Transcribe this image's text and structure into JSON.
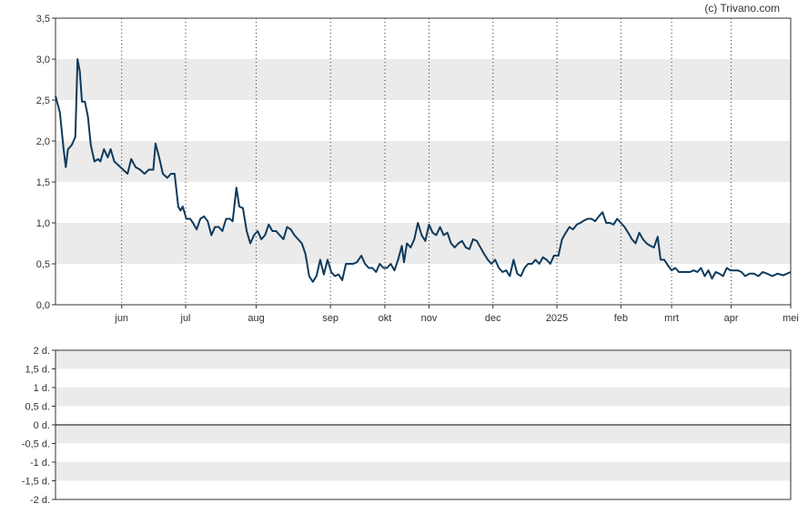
{
  "credit": "(c) Trivano.com",
  "chart_data": [
    {
      "type": "line",
      "title": "",
      "xlabel": "",
      "ylabel": "",
      "ylim": [
        0,
        3.5
      ],
      "y_ticks": [
        "0,0",
        "0,5",
        "1,0",
        "1,5",
        "2,0",
        "2,5",
        "3,0",
        "3,5"
      ],
      "x_ticks": [
        "jun",
        "jul",
        "aug",
        "sep",
        "okt",
        "nov",
        "dec",
        "2025",
        "feb",
        "mrt",
        "apr",
        "mei"
      ],
      "grid": "alternating horizontal bands, dotted vertical lines",
      "colors": {
        "line": "#0d3a5c",
        "band": "#ebebeb"
      },
      "series": [
        {
          "x_unit": "approximate fraction of the x-axis span, from the first data point (0) to the last (1)",
          "points": [
            [
              0.0,
              2.55
            ],
            [
              0.006,
              2.35
            ],
            [
              0.011,
              1.9
            ],
            [
              0.014,
              1.68
            ],
            [
              0.017,
              1.9
            ],
            [
              0.022,
              1.95
            ],
            [
              0.027,
              2.05
            ],
            [
              0.03,
              3.0
            ],
            [
              0.033,
              2.85
            ],
            [
              0.036,
              2.48
            ],
            [
              0.04,
              2.48
            ],
            [
              0.044,
              2.3
            ],
            [
              0.048,
              1.95
            ],
            [
              0.053,
              1.75
            ],
            [
              0.058,
              1.78
            ],
            [
              0.061,
              1.75
            ],
            [
              0.066,
              1.9
            ],
            [
              0.071,
              1.8
            ],
            [
              0.075,
              1.9
            ],
            [
              0.08,
              1.75
            ],
            [
              0.086,
              1.7
            ],
            [
              0.092,
              1.65
            ],
            [
              0.098,
              1.6
            ],
            [
              0.103,
              1.78
            ],
            [
              0.109,
              1.68
            ],
            [
              0.115,
              1.65
            ],
            [
              0.121,
              1.6
            ],
            [
              0.127,
              1.65
            ],
            [
              0.133,
              1.65
            ],
            [
              0.136,
              1.97
            ],
            [
              0.141,
              1.8
            ],
            [
              0.146,
              1.6
            ],
            [
              0.152,
              1.55
            ],
            [
              0.157,
              1.6
            ],
            [
              0.162,
              1.6
            ],
            [
              0.167,
              1.2
            ],
            [
              0.17,
              1.15
            ],
            [
              0.173,
              1.2
            ],
            [
              0.178,
              1.05
            ],
            [
              0.183,
              1.05
            ],
            [
              0.187,
              1.0
            ],
            [
              0.192,
              0.92
            ],
            [
              0.197,
              1.05
            ],
            [
              0.202,
              1.08
            ],
            [
              0.207,
              1.02
            ],
            [
              0.212,
              0.85
            ],
            [
              0.217,
              0.95
            ],
            [
              0.222,
              0.95
            ],
            [
              0.227,
              0.9
            ],
            [
              0.232,
              1.05
            ],
            [
              0.237,
              1.05
            ],
            [
              0.241,
              1.02
            ],
            [
              0.246,
              1.43
            ],
            [
              0.25,
              1.2
            ],
            [
              0.255,
              1.18
            ],
            [
              0.26,
              0.9
            ],
            [
              0.265,
              0.75
            ],
            [
              0.27,
              0.85
            ],
            [
              0.275,
              0.9
            ],
            [
              0.28,
              0.8
            ],
            [
              0.285,
              0.85
            ],
            [
              0.29,
              0.98
            ],
            [
              0.295,
              0.9
            ],
            [
              0.3,
              0.9
            ],
            [
              0.305,
              0.85
            ],
            [
              0.31,
              0.8
            ],
            [
              0.315,
              0.95
            ],
            [
              0.32,
              0.92
            ],
            [
              0.325,
              0.85
            ],
            [
              0.33,
              0.8
            ],
            [
              0.335,
              0.75
            ],
            [
              0.34,
              0.62
            ],
            [
              0.345,
              0.35
            ],
            [
              0.35,
              0.28
            ],
            [
              0.355,
              0.35
            ],
            [
              0.36,
              0.55
            ],
            [
              0.365,
              0.37
            ],
            [
              0.37,
              0.55
            ],
            [
              0.375,
              0.4
            ],
            [
              0.38,
              0.35
            ],
            [
              0.385,
              0.37
            ],
            [
              0.39,
              0.3
            ],
            [
              0.395,
              0.5
            ],
            [
              0.4,
              0.5
            ],
            [
              0.405,
              0.5
            ],
            [
              0.41,
              0.52
            ],
            [
              0.416,
              0.6
            ],
            [
              0.421,
              0.5
            ],
            [
              0.426,
              0.45
            ],
            [
              0.431,
              0.45
            ],
            [
              0.436,
              0.4
            ],
            [
              0.441,
              0.5
            ],
            [
              0.446,
              0.45
            ],
            [
              0.451,
              0.45
            ],
            [
              0.456,
              0.5
            ],
            [
              0.461,
              0.42
            ],
            [
              0.466,
              0.55
            ],
            [
              0.471,
              0.72
            ],
            [
              0.474,
              0.52
            ],
            [
              0.478,
              0.75
            ],
            [
              0.483,
              0.7
            ],
            [
              0.488,
              0.8
            ],
            [
              0.493,
              1.0
            ],
            [
              0.498,
              0.85
            ],
            [
              0.503,
              0.78
            ],
            [
              0.508,
              0.98
            ],
            [
              0.513,
              0.88
            ],
            [
              0.518,
              0.85
            ],
            [
              0.523,
              0.95
            ],
            [
              0.528,
              0.85
            ],
            [
              0.533,
              0.88
            ],
            [
              0.538,
              0.75
            ],
            [
              0.543,
              0.7
            ],
            [
              0.548,
              0.75
            ],
            [
              0.553,
              0.78
            ],
            [
              0.558,
              0.7
            ],
            [
              0.563,
              0.68
            ],
            [
              0.568,
              0.8
            ],
            [
              0.573,
              0.78
            ],
            [
              0.578,
              0.7
            ],
            [
              0.583,
              0.62
            ],
            [
              0.588,
              0.55
            ],
            [
              0.593,
              0.5
            ],
            [
              0.598,
              0.55
            ],
            [
              0.603,
              0.45
            ],
            [
              0.608,
              0.4
            ],
            [
              0.613,
              0.42
            ],
            [
              0.618,
              0.35
            ],
            [
              0.623,
              0.55
            ],
            [
              0.628,
              0.38
            ],
            [
              0.633,
              0.35
            ],
            [
              0.638,
              0.45
            ],
            [
              0.643,
              0.5
            ],
            [
              0.648,
              0.5
            ],
            [
              0.653,
              0.55
            ],
            [
              0.658,
              0.5
            ],
            [
              0.663,
              0.58
            ],
            [
              0.668,
              0.55
            ],
            [
              0.673,
              0.5
            ],
            [
              0.678,
              0.6
            ],
            [
              0.684,
              0.6
            ],
            [
              0.689,
              0.8
            ],
            [
              0.694,
              0.88
            ],
            [
              0.699,
              0.95
            ],
            [
              0.704,
              0.92
            ],
            [
              0.709,
              0.98
            ],
            [
              0.714,
              1.0
            ],
            [
              0.719,
              1.03
            ],
            [
              0.724,
              1.05
            ],
            [
              0.729,
              1.05
            ],
            [
              0.734,
              1.02
            ],
            [
              0.739,
              1.08
            ],
            [
              0.744,
              1.13
            ],
            [
              0.749,
              1.0
            ],
            [
              0.754,
              1.0
            ],
            [
              0.759,
              0.98
            ],
            [
              0.764,
              1.05
            ],
            [
              0.769,
              1.0
            ],
            [
              0.774,
              0.95
            ],
            [
              0.779,
              0.88
            ],
            [
              0.784,
              0.8
            ],
            [
              0.789,
              0.75
            ],
            [
              0.794,
              0.88
            ],
            [
              0.799,
              0.8
            ],
            [
              0.804,
              0.75
            ],
            [
              0.809,
              0.72
            ],
            [
              0.814,
              0.7
            ],
            [
              0.819,
              0.83
            ],
            [
              0.823,
              0.55
            ],
            [
              0.828,
              0.55
            ],
            [
              0.833,
              0.48
            ],
            [
              0.838,
              0.42
            ],
            [
              0.843,
              0.45
            ],
            [
              0.848,
              0.4
            ],
            [
              0.853,
              0.4
            ],
            [
              0.858,
              0.4
            ],
            [
              0.863,
              0.4
            ],
            [
              0.868,
              0.42
            ],
            [
              0.873,
              0.4
            ],
            [
              0.878,
              0.45
            ],
            [
              0.883,
              0.35
            ],
            [
              0.888,
              0.42
            ],
            [
              0.893,
              0.32
            ],
            [
              0.898,
              0.4
            ],
            [
              0.903,
              0.38
            ],
            [
              0.908,
              0.35
            ],
            [
              0.913,
              0.45
            ],
            [
              0.918,
              0.42
            ],
            [
              0.923,
              0.42
            ],
            [
              0.928,
              0.42
            ],
            [
              0.933,
              0.4
            ],
            [
              0.938,
              0.35
            ],
            [
              0.944,
              0.38
            ],
            [
              0.95,
              0.38
            ],
            [
              0.956,
              0.35
            ],
            [
              0.962,
              0.4
            ],
            [
              0.968,
              0.38
            ],
            [
              0.975,
              0.35
            ],
            [
              0.982,
              0.38
            ],
            [
              0.99,
              0.36
            ],
            [
              1.0,
              0.4
            ]
          ]
        }
      ]
    },
    {
      "type": "line",
      "title": "",
      "xlabel": "",
      "ylabel": "",
      "ylim": [
        -2,
        2
      ],
      "y_ticks": [
        "2 d.",
        "1,5 d.",
        "1 d.",
        "0,5 d.",
        "0 d.",
        "-0,5 d.",
        "-1 d.",
        "-1,5 d.",
        "-2 d."
      ],
      "grid": "alternating horizontal bands, solid zero line",
      "colors": {
        "band": "#ebebeb",
        "zero_line": "#000000"
      },
      "series": []
    }
  ]
}
